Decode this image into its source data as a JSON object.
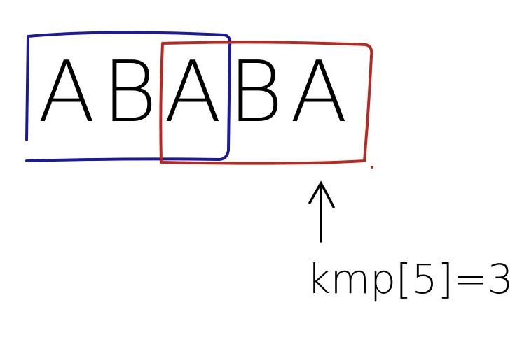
{
  "letters": [
    "A",
    "B",
    "A",
    "B",
    "A"
  ],
  "label": "kmp[5]=3"
}
